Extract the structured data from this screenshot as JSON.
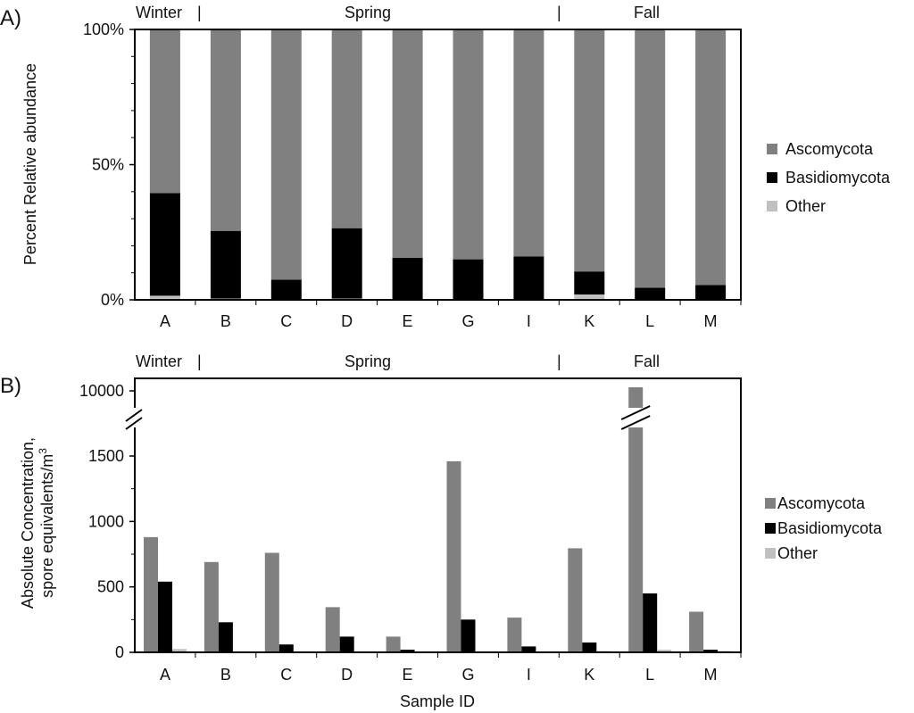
{
  "colors": {
    "ascomycota": "#808080",
    "basidiomycota": "#000000",
    "other": "#c0c0c0",
    "axis": "#000000"
  },
  "chart_data": [
    {
      "panel_label": "A)",
      "type": "bar",
      "stacked": true,
      "percent": true,
      "categories": [
        "A",
        "B",
        "C",
        "D",
        "E",
        "G",
        "I",
        "K",
        "L",
        "M"
      ],
      "series": [
        {
          "name": "Ascomycota",
          "values": [
            60.5,
            74.5,
            92.5,
            73.5,
            84.5,
            85,
            84,
            89.5,
            95.5,
            94.5
          ]
        },
        {
          "name": "Basidiomycota",
          "values": [
            38,
            25,
            7.5,
            26,
            15.5,
            15,
            16,
            8.5,
            4.5,
            5.5
          ]
        },
        {
          "name": "Other",
          "values": [
            1.5,
            0.5,
            0,
            0.5,
            0,
            0,
            0,
            2,
            0,
            0
          ]
        }
      ],
      "season_labels": {
        "winter": "Winter",
        "spring": "Spring",
        "fall": "Fall"
      },
      "season_separator": "|",
      "yticks": [
        "0%",
        "50%",
        "100%"
      ],
      "ylabel": "Percent Relative abundance",
      "xlabel": "",
      "ylim": [
        0,
        100
      ],
      "legend_position": "right"
    },
    {
      "panel_label": "B)",
      "type": "bar",
      "stacked": false,
      "categories": [
        "A",
        "B",
        "C",
        "D",
        "E",
        "G",
        "I",
        "K",
        "L",
        "M"
      ],
      "series": [
        {
          "name": "Ascomycota",
          "values": [
            880,
            690,
            760,
            345,
            120,
            1460,
            265,
            795,
            10300,
            310
          ]
        },
        {
          "name": "Basidiomycota",
          "values": [
            540,
            230,
            60,
            120,
            20,
            250,
            45,
            75,
            450,
            20
          ]
        },
        {
          "name": "Other",
          "values": [
            25,
            5,
            5,
            5,
            5,
            5,
            5,
            10,
            20,
            10
          ]
        }
      ],
      "season_labels": {
        "winter": "Winter",
        "spring": "Spring",
        "fall": "Fall"
      },
      "season_separator": "|",
      "yticks": [
        "0",
        "500",
        "1000",
        "1500",
        "10000"
      ],
      "ylabel": "Absolute Concentration,",
      "ylabel2": "spore equivalents/m",
      "ylabel_superscript": "3",
      "xlabel": "Sample ID",
      "ylim": [
        0,
        2000
      ],
      "axis_break": {
        "below": 2000,
        "top_value": 10000
      },
      "legend_position": "right"
    }
  ]
}
